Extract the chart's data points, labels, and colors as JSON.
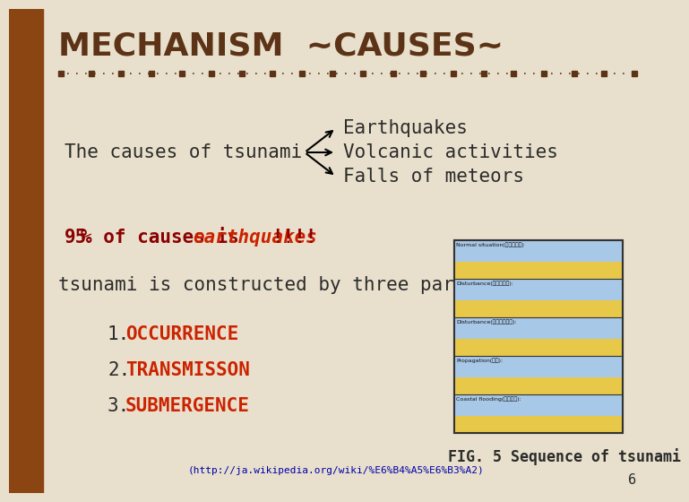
{
  "bg_color": "#e8e0cc",
  "sidebar_color": "#8B4513",
  "title": "MECHANISM  ~CAUSES~",
  "title_color": "#5c3317",
  "title_fontsize": 26,
  "separator_color": "#5c3317",
  "causes_label": "The causes of tsunami",
  "causes_label_color": "#2b2b2b",
  "causes_label_fontsize": 15,
  "earthquake_label": "Earthquakes",
  "volcanic_label": "Volcanic activities",
  "meteors_label": "Falls of meteors",
  "causes_items_color": "#2b2b2b",
  "causes_items_fontsize": 15,
  "percent_color_dark": "#8B0000",
  "percent_color_red": "#cc2200",
  "percent_fontsize": 15,
  "three_parts_text": "tsunami is constructed by three parts.",
  "three_parts_color": "#2b2b2b",
  "three_parts_fontsize": 15,
  "item1_text": "OCCURRENCE",
  "item2_text": "TRANSMISSON",
  "item3_text": "SUBMERGENCE",
  "items_num_color": "#2b2b2b",
  "items_text_color": "#cc2200",
  "items_fontsize": 15,
  "fig_caption": "FIG. 5 Sequence of tsunami",
  "fig_caption_color": "#2b2b2b",
  "fig_caption_fontsize": 12,
  "link_text": "(http://ja.wikipedia.org/wiki/%E6%B4%A5%E6%B3%A2)",
  "link_color": "#0000aa",
  "link_fontsize": 8,
  "page_num": "6",
  "page_num_color": "#2b2b2b",
  "page_num_fontsize": 11
}
